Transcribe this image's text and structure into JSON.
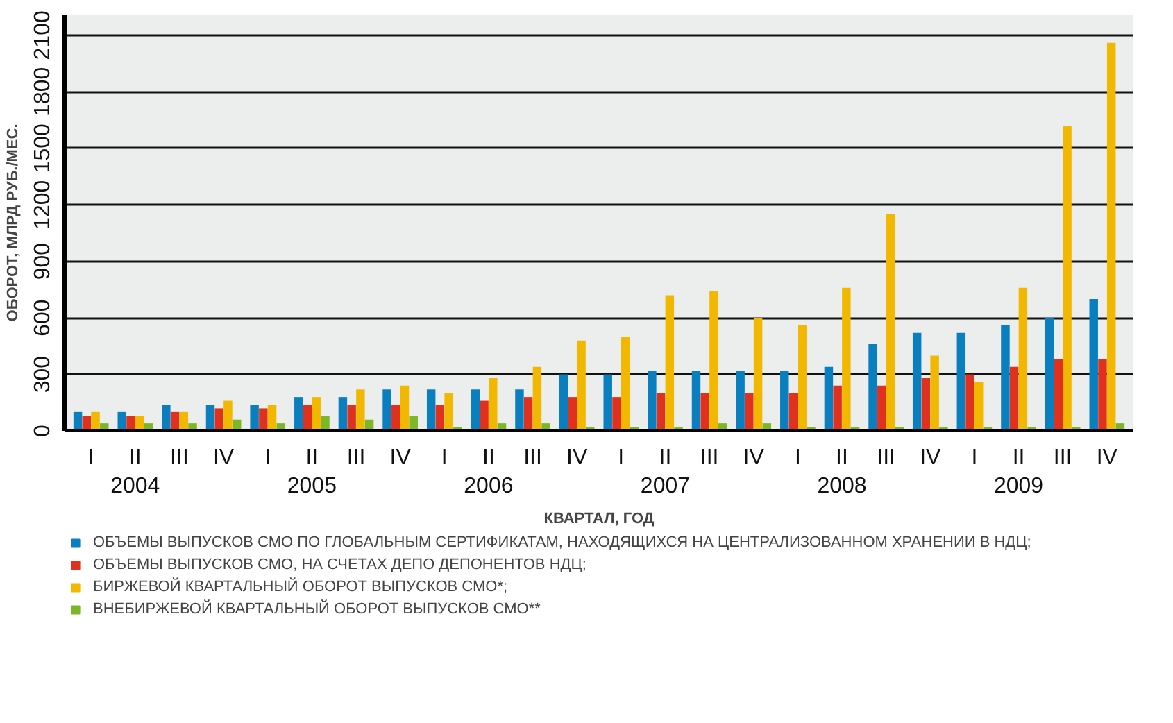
{
  "chart_data": {
    "type": "bar",
    "ylabel": "ОБОРОТ, МЛРД РУБ./МЕС.",
    "xlabel": "КВАРТАЛ, ГОД",
    "categories": [
      "I",
      "II",
      "III",
      "IV",
      "I",
      "II",
      "III",
      "IV",
      "I",
      "II",
      "III",
      "IV",
      "I",
      "II",
      "III",
      "IV",
      "I",
      "II",
      "III",
      "IV",
      "I",
      "II",
      "III",
      "IV"
    ],
    "annotations": [
      "2004",
      "2005",
      "2006",
      "2007",
      "2008",
      "2009"
    ],
    "ylim": [
      0,
      2210
    ],
    "yticks": [
      0,
      300,
      600,
      900,
      1200,
      1500,
      1800,
      2100
    ],
    "grid": "y",
    "legend": "bottom",
    "series": [
      {
        "name": "ОБЪЕМЫ ВЫПУСКОВ СМО ПО ГЛОБАЛЬНЫМ СЕРТИФИКАТАМ, НАХОДЯЩИХСЯ НА ЦЕНТРАЛИЗОВАННОМ ХРАНЕНИИ В НДЦ;",
        "color": "#0a7fbf",
        "values": [
          100,
          100,
          140,
          140,
          140,
          180,
          180,
          220,
          220,
          220,
          220,
          300,
          300,
          320,
          320,
          320,
          320,
          340,
          460,
          520,
          520,
          560,
          600,
          700
        ]
      },
      {
        "name": "ОБЪЕМЫ ВЫПУСКОВ СМО, НА СЧЕТАХ ДЕПО ДЕПОНЕНТОВ НДЦ;",
        "color": "#e0301e",
        "values": [
          80,
          80,
          100,
          120,
          120,
          140,
          140,
          140,
          140,
          160,
          180,
          180,
          180,
          200,
          200,
          200,
          200,
          240,
          240,
          280,
          300,
          340,
          380,
          380
        ]
      },
      {
        "name": "БИРЖЕВОЙ КВАРТАЛЬНЫЙ ОБОРОТ ВЫПУСКОВ СМО*;",
        "color": "#f2b800",
        "values": [
          100,
          80,
          100,
          160,
          140,
          180,
          220,
          240,
          200,
          280,
          340,
          480,
          500,
          720,
          740,
          600,
          560,
          760,
          1150,
          400,
          260,
          760,
          1620,
          2060
        ]
      },
      {
        "name": "ВНЕБИРЖЕВОЙ КВАРТАЛЬНЫЙ ОБОРОТ ВЫПУСКОВ СМО**",
        "color": "#7db626",
        "values": [
          40,
          40,
          40,
          60,
          40,
          80,
          60,
          80,
          20,
          40,
          40,
          20,
          20,
          20,
          40,
          40,
          20,
          20,
          20,
          20,
          20,
          20,
          20,
          40
        ]
      }
    ]
  }
}
